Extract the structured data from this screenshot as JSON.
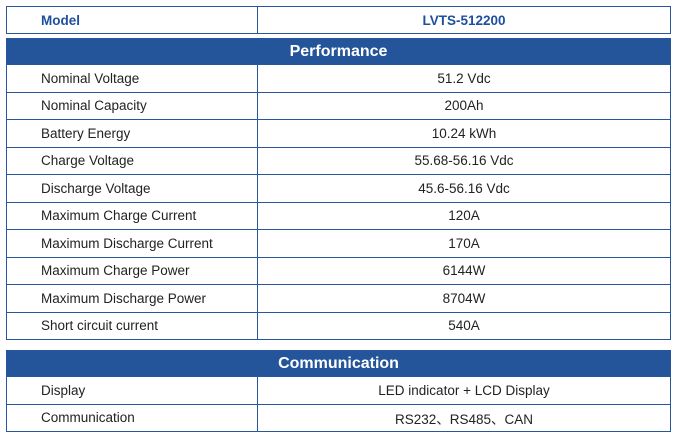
{
  "model": {
    "label": "Model",
    "value": "LVTS-512200"
  },
  "performance": {
    "title": "Performance",
    "rows": [
      {
        "label": "Nominal Voltage",
        "value": "51.2 Vdc"
      },
      {
        "label": "Nominal Capacity",
        "value": "200Ah"
      },
      {
        "label": "Battery Energy",
        "value": "10.24 kWh"
      },
      {
        "label": "Charge Voltage",
        "value": "55.68-56.16 Vdc"
      },
      {
        "label": "Discharge Voltage",
        "value": "45.6-56.16 Vdc"
      },
      {
        "label": "Maximum Charge Current",
        "value": "120A"
      },
      {
        "label": "Maximum Discharge Current",
        "value": "170A"
      },
      {
        "label": "Maximum Charge Power",
        "value": "6144W"
      },
      {
        "label": "Maximum Discharge Power",
        "value": "8704W"
      },
      {
        "label": "Short circuit current",
        "value": "540A"
      }
    ]
  },
  "communication": {
    "title": "Communication",
    "rows": [
      {
        "label": "Display",
        "value": "LED indicator + LCD Display"
      },
      {
        "label": "Communication",
        "value": "RS232、RS485、CAN"
      }
    ]
  },
  "colors": {
    "header_bg": "#24559a",
    "border": "#27579a",
    "model_text": "#1f4f9c"
  }
}
